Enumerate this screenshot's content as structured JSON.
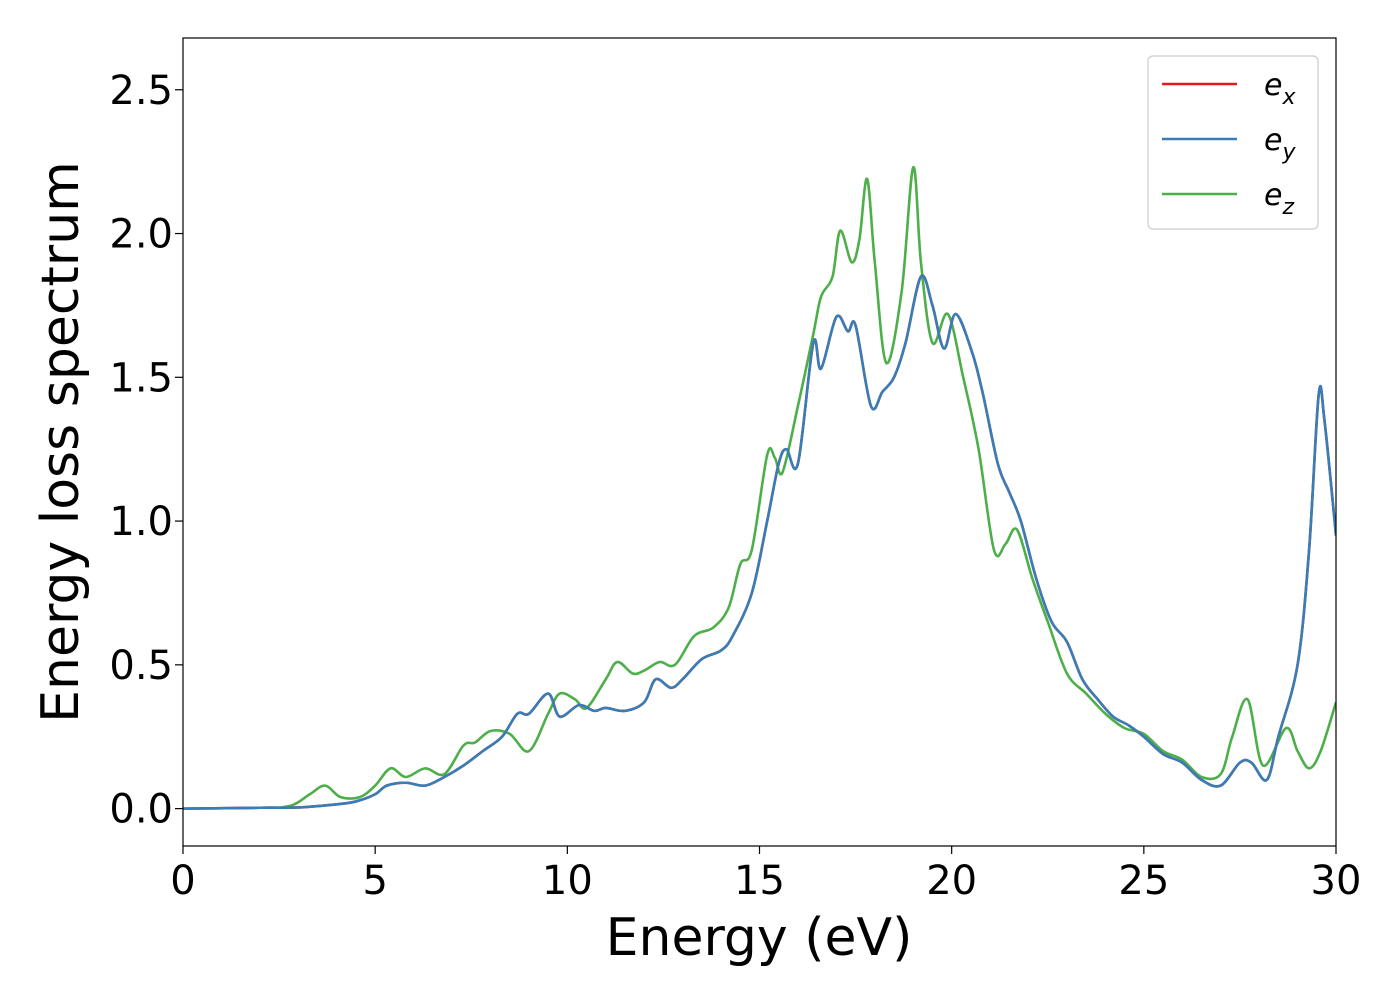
{
  "chart_data": {
    "type": "line",
    "title": "",
    "xlabel": "Energy (eV)",
    "ylabel": "Energy loss spectrum",
    "xlim": [
      0,
      30
    ],
    "ylim": [
      -0.13,
      2.68
    ],
    "xticks": [
      0,
      5,
      10,
      15,
      20,
      25,
      30
    ],
    "xtick_labels": [
      "0",
      "5",
      "10",
      "15",
      "20",
      "25",
      "30"
    ],
    "yticks": [
      0.0,
      0.5,
      1.0,
      1.5,
      2.0,
      2.5
    ],
    "ytick_labels": [
      "0.0",
      "0.5",
      "1.0",
      "1.5",
      "2.0",
      "2.5"
    ],
    "grid": false,
    "legend_position": "top-right",
    "series": [
      {
        "name": "ex",
        "legend_base": "e",
        "legend_sub": "x",
        "color": "#e41a1c",
        "points": [
          [
            0,
            0
          ],
          [
            2,
            0.003
          ],
          [
            3,
            0.004
          ],
          [
            4,
            0.015
          ],
          [
            4.5,
            0.025
          ],
          [
            5,
            0.05
          ],
          [
            5.3,
            0.08
          ],
          [
            5.8,
            0.09
          ],
          [
            6.3,
            0.08
          ],
          [
            6.8,
            0.11
          ],
          [
            7.3,
            0.15
          ],
          [
            7.8,
            0.2
          ],
          [
            8.3,
            0.25
          ],
          [
            8.7,
            0.33
          ],
          [
            9,
            0.33
          ],
          [
            9.5,
            0.4
          ],
          [
            9.8,
            0.32
          ],
          [
            10.3,
            0.36
          ],
          [
            10.7,
            0.34
          ],
          [
            11,
            0.35
          ],
          [
            11.5,
            0.34
          ],
          [
            12,
            0.37
          ],
          [
            12.3,
            0.45
          ],
          [
            12.7,
            0.42
          ],
          [
            13,
            0.45
          ],
          [
            13.5,
            0.52
          ],
          [
            14,
            0.55
          ],
          [
            14.3,
            0.6
          ],
          [
            14.8,
            0.75
          ],
          [
            15.2,
            1.0
          ],
          [
            15.5,
            1.2
          ],
          [
            15.7,
            1.25
          ],
          [
            16,
            1.2
          ],
          [
            16.4,
            1.62
          ],
          [
            16.6,
            1.53
          ],
          [
            17,
            1.71
          ],
          [
            17.3,
            1.66
          ],
          [
            17.5,
            1.68
          ],
          [
            17.9,
            1.4
          ],
          [
            18.2,
            1.45
          ],
          [
            18.5,
            1.5
          ],
          [
            18.8,
            1.62
          ],
          [
            19.2,
            1.85
          ],
          [
            19.5,
            1.75
          ],
          [
            19.8,
            1.6
          ],
          [
            20.1,
            1.72
          ],
          [
            20.5,
            1.6
          ],
          [
            20.8,
            1.45
          ],
          [
            21.2,
            1.2
          ],
          [
            21.5,
            1.1
          ],
          [
            21.8,
            1.0
          ],
          [
            22.2,
            0.8
          ],
          [
            22.6,
            0.65
          ],
          [
            23,
            0.58
          ],
          [
            23.4,
            0.45
          ],
          [
            23.8,
            0.38
          ],
          [
            24.2,
            0.32
          ],
          [
            24.6,
            0.29
          ],
          [
            25,
            0.25
          ],
          [
            25.5,
            0.19
          ],
          [
            26,
            0.16
          ],
          [
            26.5,
            0.1
          ],
          [
            27,
            0.08
          ],
          [
            27.5,
            0.16
          ],
          [
            27.8,
            0.16
          ],
          [
            28.2,
            0.1
          ],
          [
            28.5,
            0.25
          ],
          [
            29,
            0.5
          ],
          [
            29.3,
            0.9
          ],
          [
            29.55,
            1.44
          ],
          [
            29.7,
            1.35
          ],
          [
            30,
            0.95
          ]
        ]
      },
      {
        "name": "ey",
        "legend_base": "e",
        "legend_sub": "y",
        "color": "#377eb8",
        "points": [
          [
            0,
            0
          ],
          [
            2,
            0.003
          ],
          [
            3,
            0.004
          ],
          [
            4,
            0.015
          ],
          [
            4.5,
            0.025
          ],
          [
            5,
            0.05
          ],
          [
            5.3,
            0.08
          ],
          [
            5.8,
            0.09
          ],
          [
            6.3,
            0.08
          ],
          [
            6.8,
            0.11
          ],
          [
            7.3,
            0.15
          ],
          [
            7.8,
            0.2
          ],
          [
            8.3,
            0.25
          ],
          [
            8.7,
            0.33
          ],
          [
            9,
            0.33
          ],
          [
            9.5,
            0.4
          ],
          [
            9.8,
            0.32
          ],
          [
            10.3,
            0.36
          ],
          [
            10.7,
            0.34
          ],
          [
            11,
            0.35
          ],
          [
            11.5,
            0.34
          ],
          [
            12,
            0.37
          ],
          [
            12.3,
            0.45
          ],
          [
            12.7,
            0.42
          ],
          [
            13,
            0.45
          ],
          [
            13.5,
            0.52
          ],
          [
            14,
            0.55
          ],
          [
            14.3,
            0.6
          ],
          [
            14.8,
            0.75
          ],
          [
            15.2,
            1.0
          ],
          [
            15.5,
            1.2
          ],
          [
            15.7,
            1.25
          ],
          [
            16,
            1.2
          ],
          [
            16.4,
            1.62
          ],
          [
            16.6,
            1.53
          ],
          [
            17,
            1.71
          ],
          [
            17.3,
            1.66
          ],
          [
            17.5,
            1.68
          ],
          [
            17.9,
            1.4
          ],
          [
            18.2,
            1.45
          ],
          [
            18.5,
            1.5
          ],
          [
            18.8,
            1.62
          ],
          [
            19.2,
            1.85
          ],
          [
            19.5,
            1.75
          ],
          [
            19.8,
            1.6
          ],
          [
            20.1,
            1.72
          ],
          [
            20.5,
            1.6
          ],
          [
            20.8,
            1.45
          ],
          [
            21.2,
            1.2
          ],
          [
            21.5,
            1.1
          ],
          [
            21.8,
            1.0
          ],
          [
            22.2,
            0.8
          ],
          [
            22.6,
            0.65
          ],
          [
            23,
            0.58
          ],
          [
            23.4,
            0.45
          ],
          [
            23.8,
            0.38
          ],
          [
            24.2,
            0.32
          ],
          [
            24.6,
            0.29
          ],
          [
            25,
            0.25
          ],
          [
            25.5,
            0.19
          ],
          [
            26,
            0.16
          ],
          [
            26.5,
            0.1
          ],
          [
            27,
            0.08
          ],
          [
            27.5,
            0.16
          ],
          [
            27.8,
            0.16
          ],
          [
            28.2,
            0.1
          ],
          [
            28.5,
            0.25
          ],
          [
            29,
            0.5
          ],
          [
            29.3,
            0.9
          ],
          [
            29.55,
            1.44
          ],
          [
            29.7,
            1.35
          ],
          [
            30,
            0.95
          ]
        ]
      },
      {
        "name": "ez",
        "legend_base": "e",
        "legend_sub": "z",
        "color": "#4daf4a",
        "points": [
          [
            0,
            0
          ],
          [
            2,
            0.003
          ],
          [
            2.8,
            0.01
          ],
          [
            3.3,
            0.05
          ],
          [
            3.7,
            0.08
          ],
          [
            4.1,
            0.04
          ],
          [
            4.6,
            0.04
          ],
          [
            5,
            0.08
          ],
          [
            5.4,
            0.14
          ],
          [
            5.8,
            0.11
          ],
          [
            6.3,
            0.14
          ],
          [
            6.8,
            0.12
          ],
          [
            7.3,
            0.22
          ],
          [
            7.6,
            0.23
          ],
          [
            8,
            0.27
          ],
          [
            8.5,
            0.26
          ],
          [
            9,
            0.2
          ],
          [
            9.5,
            0.33
          ],
          [
            9.8,
            0.4
          ],
          [
            10.2,
            0.38
          ],
          [
            10.5,
            0.35
          ],
          [
            11,
            0.45
          ],
          [
            11.3,
            0.51
          ],
          [
            11.7,
            0.47
          ],
          [
            12,
            0.48
          ],
          [
            12.4,
            0.51
          ],
          [
            12.8,
            0.5
          ],
          [
            13.3,
            0.6
          ],
          [
            13.8,
            0.63
          ],
          [
            14.2,
            0.7
          ],
          [
            14.5,
            0.85
          ],
          [
            14.8,
            0.9
          ],
          [
            15.2,
            1.23
          ],
          [
            15.4,
            1.22
          ],
          [
            15.6,
            1.17
          ],
          [
            16,
            1.4
          ],
          [
            16.4,
            1.65
          ],
          [
            16.6,
            1.78
          ],
          [
            16.9,
            1.85
          ],
          [
            17.1,
            2.01
          ],
          [
            17.4,
            1.9
          ],
          [
            17.6,
            1.98
          ],
          [
            17.8,
            2.19
          ],
          [
            18,
            1.9
          ],
          [
            18.3,
            1.55
          ],
          [
            18.7,
            1.8
          ],
          [
            19,
            2.23
          ],
          [
            19.2,
            1.9
          ],
          [
            19.5,
            1.62
          ],
          [
            19.9,
            1.72
          ],
          [
            20.3,
            1.5
          ],
          [
            20.7,
            1.25
          ],
          [
            21.1,
            0.9
          ],
          [
            21.4,
            0.92
          ],
          [
            21.7,
            0.97
          ],
          [
            22.1,
            0.8
          ],
          [
            22.5,
            0.65
          ],
          [
            23,
            0.47
          ],
          [
            23.5,
            0.4
          ],
          [
            24,
            0.33
          ],
          [
            24.5,
            0.28
          ],
          [
            25,
            0.26
          ],
          [
            25.5,
            0.2
          ],
          [
            26,
            0.17
          ],
          [
            26.5,
            0.11
          ],
          [
            27,
            0.12
          ],
          [
            27.3,
            0.25
          ],
          [
            27.7,
            0.38
          ],
          [
            28.1,
            0.15
          ],
          [
            28.7,
            0.28
          ],
          [
            29,
            0.2
          ],
          [
            29.3,
            0.14
          ],
          [
            29.6,
            0.2
          ],
          [
            30,
            0.37
          ]
        ]
      }
    ]
  }
}
